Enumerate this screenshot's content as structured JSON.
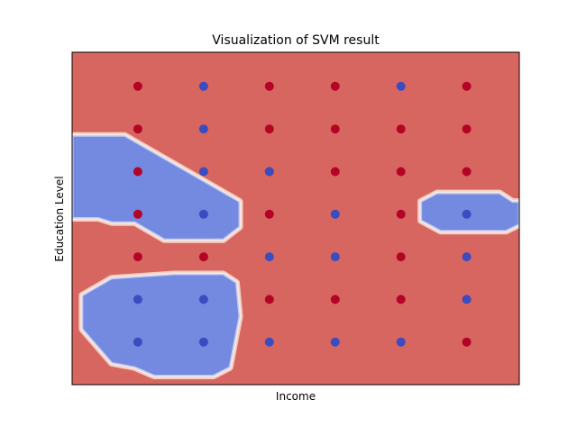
{
  "chart_data": {
    "type": "scatter",
    "title": "Visualization of SVM result",
    "xlabel": "Income",
    "ylabel": "Education Level",
    "xticks": [],
    "yticks": [],
    "xlim": [
      0,
      6.8
    ],
    "ylim": [
      0,
      7.8
    ],
    "grid": false,
    "legend": "none",
    "colors": {
      "class_red_point": "#b40426",
      "class_blue_point": "#3b4cc0",
      "region_red": "#d86660",
      "region_blue": "#7489e0",
      "boundary_light": "#f3d0c3"
    },
    "series": [
      {
        "class": "red",
        "points": [
          [
            1,
            7
          ],
          [
            3,
            7
          ],
          [
            4,
            7
          ],
          [
            6,
            7
          ],
          [
            1,
            6
          ],
          [
            3,
            6
          ],
          [
            4,
            6
          ],
          [
            5,
            6
          ],
          [
            6,
            6
          ],
          [
            1,
            5
          ],
          [
            3,
            5
          ],
          [
            4,
            5
          ],
          [
            5,
            5
          ],
          [
            6,
            5
          ],
          [
            1,
            4
          ],
          [
            3,
            4
          ],
          [
            5,
            4
          ],
          [
            1,
            3
          ],
          [
            2,
            3
          ],
          [
            5,
            3
          ],
          [
            3,
            2
          ],
          [
            4,
            2
          ],
          [
            5,
            2
          ],
          [
            6,
            1
          ]
        ]
      },
      {
        "class": "blue",
        "points": [
          [
            2,
            7
          ],
          [
            5,
            7
          ],
          [
            2,
            6
          ],
          [
            2,
            5
          ],
          [
            3,
            5
          ],
          [
            2,
            4
          ],
          [
            4,
            4
          ],
          [
            6,
            4
          ],
          [
            3,
            3
          ],
          [
            4,
            3
          ],
          [
            6,
            3
          ],
          [
            1,
            2
          ],
          [
            2,
            2
          ],
          [
            6,
            2
          ],
          [
            1,
            1
          ],
          [
            2,
            1
          ],
          [
            3,
            1
          ],
          [
            4,
            1
          ],
          [
            5,
            1
          ]
        ]
      }
    ],
    "decision_regions": {
      "background_class": "red",
      "blue_regions": [
        [
          [
            0,
            5.85
          ],
          [
            0.8,
            5.85
          ],
          [
            2.55,
            4.3
          ],
          [
            2.55,
            3.7
          ],
          [
            2.3,
            3.4
          ],
          [
            1.4,
            3.4
          ],
          [
            0.95,
            3.8
          ],
          [
            0.6,
            3.8
          ],
          [
            0.4,
            3.9
          ],
          [
            0,
            3.9
          ]
        ],
        [
          [
            0.15,
            2.1
          ],
          [
            0.6,
            2.5
          ],
          [
            1.55,
            2.6
          ],
          [
            2.3,
            2.6
          ],
          [
            2.5,
            2.4
          ],
          [
            2.55,
            1.6
          ],
          [
            2.4,
            0.4
          ],
          [
            2.15,
            0.2
          ],
          [
            1.25,
            0.2
          ],
          [
            0.95,
            0.4
          ],
          [
            0.6,
            0.5
          ],
          [
            0.15,
            1.3
          ]
        ],
        [
          [
            5.3,
            4.3
          ],
          [
            5.55,
            4.5
          ],
          [
            6.5,
            4.5
          ],
          [
            6.7,
            4.3
          ],
          [
            6.8,
            4.3
          ],
          [
            6.8,
            3.75
          ],
          [
            6.6,
            3.6
          ],
          [
            5.6,
            3.6
          ],
          [
            5.3,
            3.85
          ]
        ]
      ]
    }
  }
}
